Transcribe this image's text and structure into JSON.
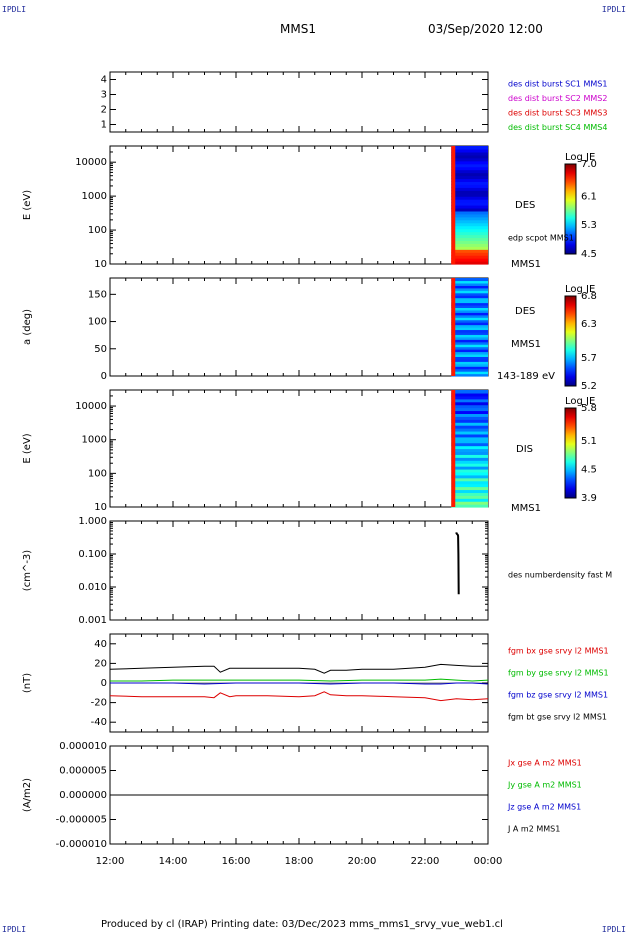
{
  "header": {
    "corner_label": "IPDLI",
    "mission": "MMS1",
    "datetime": "03/Sep/2020 12:00"
  },
  "footer": {
    "text": "Produced by cl (IRAP)   Printing date: 03/Dec/2023   mms_mms1_srvy_vue_web1.cl"
  },
  "colors": {
    "blue": "#0000cc",
    "magenta": "#cc00cc",
    "red": "#dd0000",
    "green": "#00bb00",
    "black": "#000000"
  },
  "chart_data": [
    {
      "type": "line",
      "id": "panel-spacecraft",
      "ylim": [
        0.5,
        4.5
      ],
      "yticks": [
        "1",
        "2",
        "3",
        "4"
      ],
      "legend": [
        {
          "label": "des dist burst SC1 MMS1",
          "color": "#0000cc"
        },
        {
          "label": "des dist burst SC2 MMS2",
          "color": "#cc00cc"
        },
        {
          "label": "des dist burst SC3 MMS3",
          "color": "#dd0000"
        },
        {
          "label": "des dist burst SC4 MMS4",
          "color": "#00bb00"
        }
      ],
      "series": []
    },
    {
      "type": "heatmap",
      "id": "panel-des-energy",
      "ylabel": "E (eV)",
      "yscale": "log",
      "ylim": [
        10,
        30000
      ],
      "yticks": [
        "10",
        "100",
        "1000",
        "10000"
      ],
      "labels": [
        "DES",
        "edp scpot MMS1",
        "MMS1"
      ],
      "colorbar": {
        "title": "Log JE",
        "ticks": [
          "7.0",
          "6.1",
          "5.3",
          "4.5"
        ],
        "min": 4.5,
        "max": 7.0
      },
      "data_start": "22:50",
      "data_end": "23:59"
    },
    {
      "type": "heatmap",
      "id": "panel-des-pitch",
      "ylabel": "a (deg)",
      "ylim": [
        0,
        180
      ],
      "yticks": [
        "0",
        "50",
        "100",
        "150"
      ],
      "labels": [
        "DES",
        "MMS1",
        "143-189 eV"
      ],
      "colorbar": {
        "title": "Log JE",
        "ticks": [
          "6.8",
          "6.3",
          "5.7",
          "5.2"
        ],
        "min": 5.2,
        "max": 6.8
      },
      "data_start": "22:50",
      "data_end": "23:59"
    },
    {
      "type": "heatmap",
      "id": "panel-dis-energy",
      "ylabel": "E (eV)",
      "yscale": "log",
      "ylim": [
        10,
        30000
      ],
      "yticks": [
        "10",
        "100",
        "1000",
        "10000"
      ],
      "labels": [
        "DIS",
        "MMS1"
      ],
      "colorbar": {
        "title": "Log JE",
        "ticks": [
          "5.8",
          "5.1",
          "4.5",
          "3.9"
        ],
        "min": 3.9,
        "max": 5.8
      },
      "data_start": "22:50",
      "data_end": "23:59"
    },
    {
      "type": "line",
      "id": "panel-density",
      "ylabel": "(cm^-3)",
      "yscale": "log",
      "ylim": [
        0.001,
        1.0
      ],
      "yticks": [
        "0.001",
        "0.010",
        "0.100",
        "1.000"
      ],
      "legend": [
        {
          "label": "des numberdensity fast M",
          "color": "#000000"
        }
      ],
      "series": [
        {
          "name": "des numberdensity fast M",
          "color": "#000000",
          "x": [
            23.0,
            23.0,
            23.02,
            23.04,
            23.05,
            23.06,
            23.07
          ],
          "y": [
            0.45,
            0.42,
            0.4,
            0.38,
            0.35,
            0.1,
            0.006
          ]
        }
      ]
    },
    {
      "type": "line",
      "id": "panel-bfield",
      "ylabel": "(nT)",
      "ylim": [
        -50,
        50
      ],
      "yticks": [
        "-40",
        "-20",
        "0",
        "20",
        "40"
      ],
      "legend": [
        {
          "label": "fgm bx gse srvy l2 MMS1",
          "color": "#dd0000"
        },
        {
          "label": "fgm by gse srvy l2 MMS1",
          "color": "#00bb00"
        },
        {
          "label": "fgm bz gse srvy l2 MMS1",
          "color": "#0000cc"
        },
        {
          "label": "fgm bt gse srvy l2 MMS1",
          "color": "#000000"
        }
      ],
      "series": [
        {
          "name": "fgm bx gse srvy l2 MMS1",
          "color": "#dd0000",
          "x": [
            12,
            13,
            14,
            15,
            15.3,
            15.5,
            15.8,
            16,
            17,
            18,
            18.5,
            18.8,
            19,
            19.5,
            20,
            21,
            22,
            22.5,
            23,
            23.5,
            24
          ],
          "y": [
            -13,
            -14,
            -14,
            -14,
            -15,
            -10,
            -14,
            -13,
            -13,
            -14,
            -13,
            -9,
            -12,
            -13,
            -13,
            -14,
            -15,
            -18,
            -16,
            -17,
            -16
          ]
        },
        {
          "name": "fgm by gse srvy l2 MMS1",
          "color": "#00bb00",
          "x": [
            12,
            13,
            14,
            15,
            16,
            17,
            18,
            19,
            20,
            21,
            22,
            22.5,
            23,
            23.5,
            24
          ],
          "y": [
            2,
            2,
            3,
            3,
            3,
            3,
            3,
            2,
            3,
            3,
            3,
            4,
            3,
            2,
            3
          ]
        },
        {
          "name": "fgm bz gse srvy l2 MMS1",
          "color": "#0000cc",
          "x": [
            12,
            13,
            14,
            15,
            16,
            17,
            18,
            19,
            20,
            21,
            22,
            22.5,
            23,
            23.5,
            24
          ],
          "y": [
            0,
            0,
            0,
            -1,
            0,
            0,
            0,
            -1,
            0,
            0,
            -1,
            -1,
            0,
            0,
            -1
          ]
        },
        {
          "name": "fgm bt gse srvy l2 MMS1",
          "color": "#000000",
          "x": [
            12,
            13,
            14,
            15,
            15.3,
            15.5,
            15.8,
            16,
            17,
            18,
            18.5,
            18.8,
            19,
            19.5,
            20,
            21,
            22,
            22.5,
            23,
            23.5,
            24
          ],
          "y": [
            14,
            15,
            16,
            17,
            17,
            11,
            15,
            15,
            15,
            15,
            14,
            10,
            13,
            13,
            14,
            14,
            16,
            19,
            18,
            17,
            17
          ]
        }
      ]
    },
    {
      "type": "line",
      "id": "panel-current",
      "ylabel": "(A/m2)",
      "ylim": [
        -1e-05,
        1e-05
      ],
      "yticks": [
        "-0.000010",
        "-0.000005",
        "0.000000",
        "0.000005",
        "0.000010"
      ],
      "legend": [
        {
          "label": "Jx gse A m2 MMS1",
          "color": "#dd0000"
        },
        {
          "label": "Jy gse A m2 MMS1",
          "color": "#00bb00"
        },
        {
          "label": "Jz gse A m2 MMS1",
          "color": "#0000cc"
        },
        {
          "label": "J A m2 MMS1",
          "color": "#000000"
        }
      ],
      "series": [
        {
          "name": "J A m2 MMS1",
          "color": "#000000",
          "x": [
            12,
            24
          ],
          "y": [
            0,
            0
          ]
        }
      ]
    }
  ],
  "xaxis": {
    "ticks": [
      "12:00",
      "14:00",
      "16:00",
      "18:00",
      "20:00",
      "22:00",
      "00:00"
    ],
    "range": [
      12,
      24
    ]
  }
}
